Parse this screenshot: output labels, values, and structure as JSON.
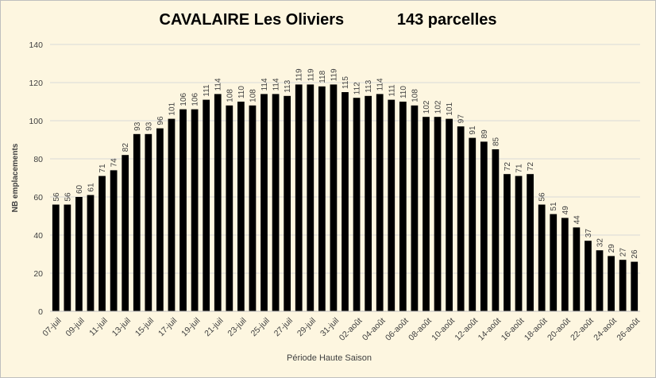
{
  "chart_data": {
    "type": "bar",
    "title_left": "CAVALAIRE Les Oliviers",
    "title_right": "143 parcelles",
    "xlabel": "Période Haute Saison",
    "ylabel": "NB emplacements",
    "ylim": [
      0,
      140
    ],
    "yticks": [
      0,
      20,
      40,
      60,
      80,
      100,
      120,
      140
    ],
    "grid": true,
    "bar_color": "#000000",
    "grid_color": "#d9d9d9",
    "x_tick_labels": [
      "07-juil",
      "09-juil",
      "11-juil",
      "13-juil",
      "15-juil",
      "17-juil",
      "19-juil",
      "21-juil",
      "23-juil",
      "25-juil",
      "27-juil",
      "29-juil",
      "31-juil",
      "02-août",
      "04-août",
      "06-août",
      "08-août",
      "10-août",
      "12-août",
      "14-août",
      "16-août",
      "18-août",
      "20-août",
      "22-août",
      "24-août",
      "26-août"
    ],
    "values": [
      56,
      56,
      60,
      61,
      71,
      74,
      82,
      93,
      93,
      96,
      101,
      106,
      106,
      111,
      114,
      108,
      110,
      108,
      114,
      114,
      113,
      119,
      119,
      118,
      119,
      115,
      112,
      113,
      114,
      111,
      110,
      108,
      102,
      102,
      101,
      97,
      91,
      89,
      85,
      72,
      71,
      72,
      56,
      51,
      49,
      44,
      37,
      32,
      29,
      27,
      26
    ]
  }
}
